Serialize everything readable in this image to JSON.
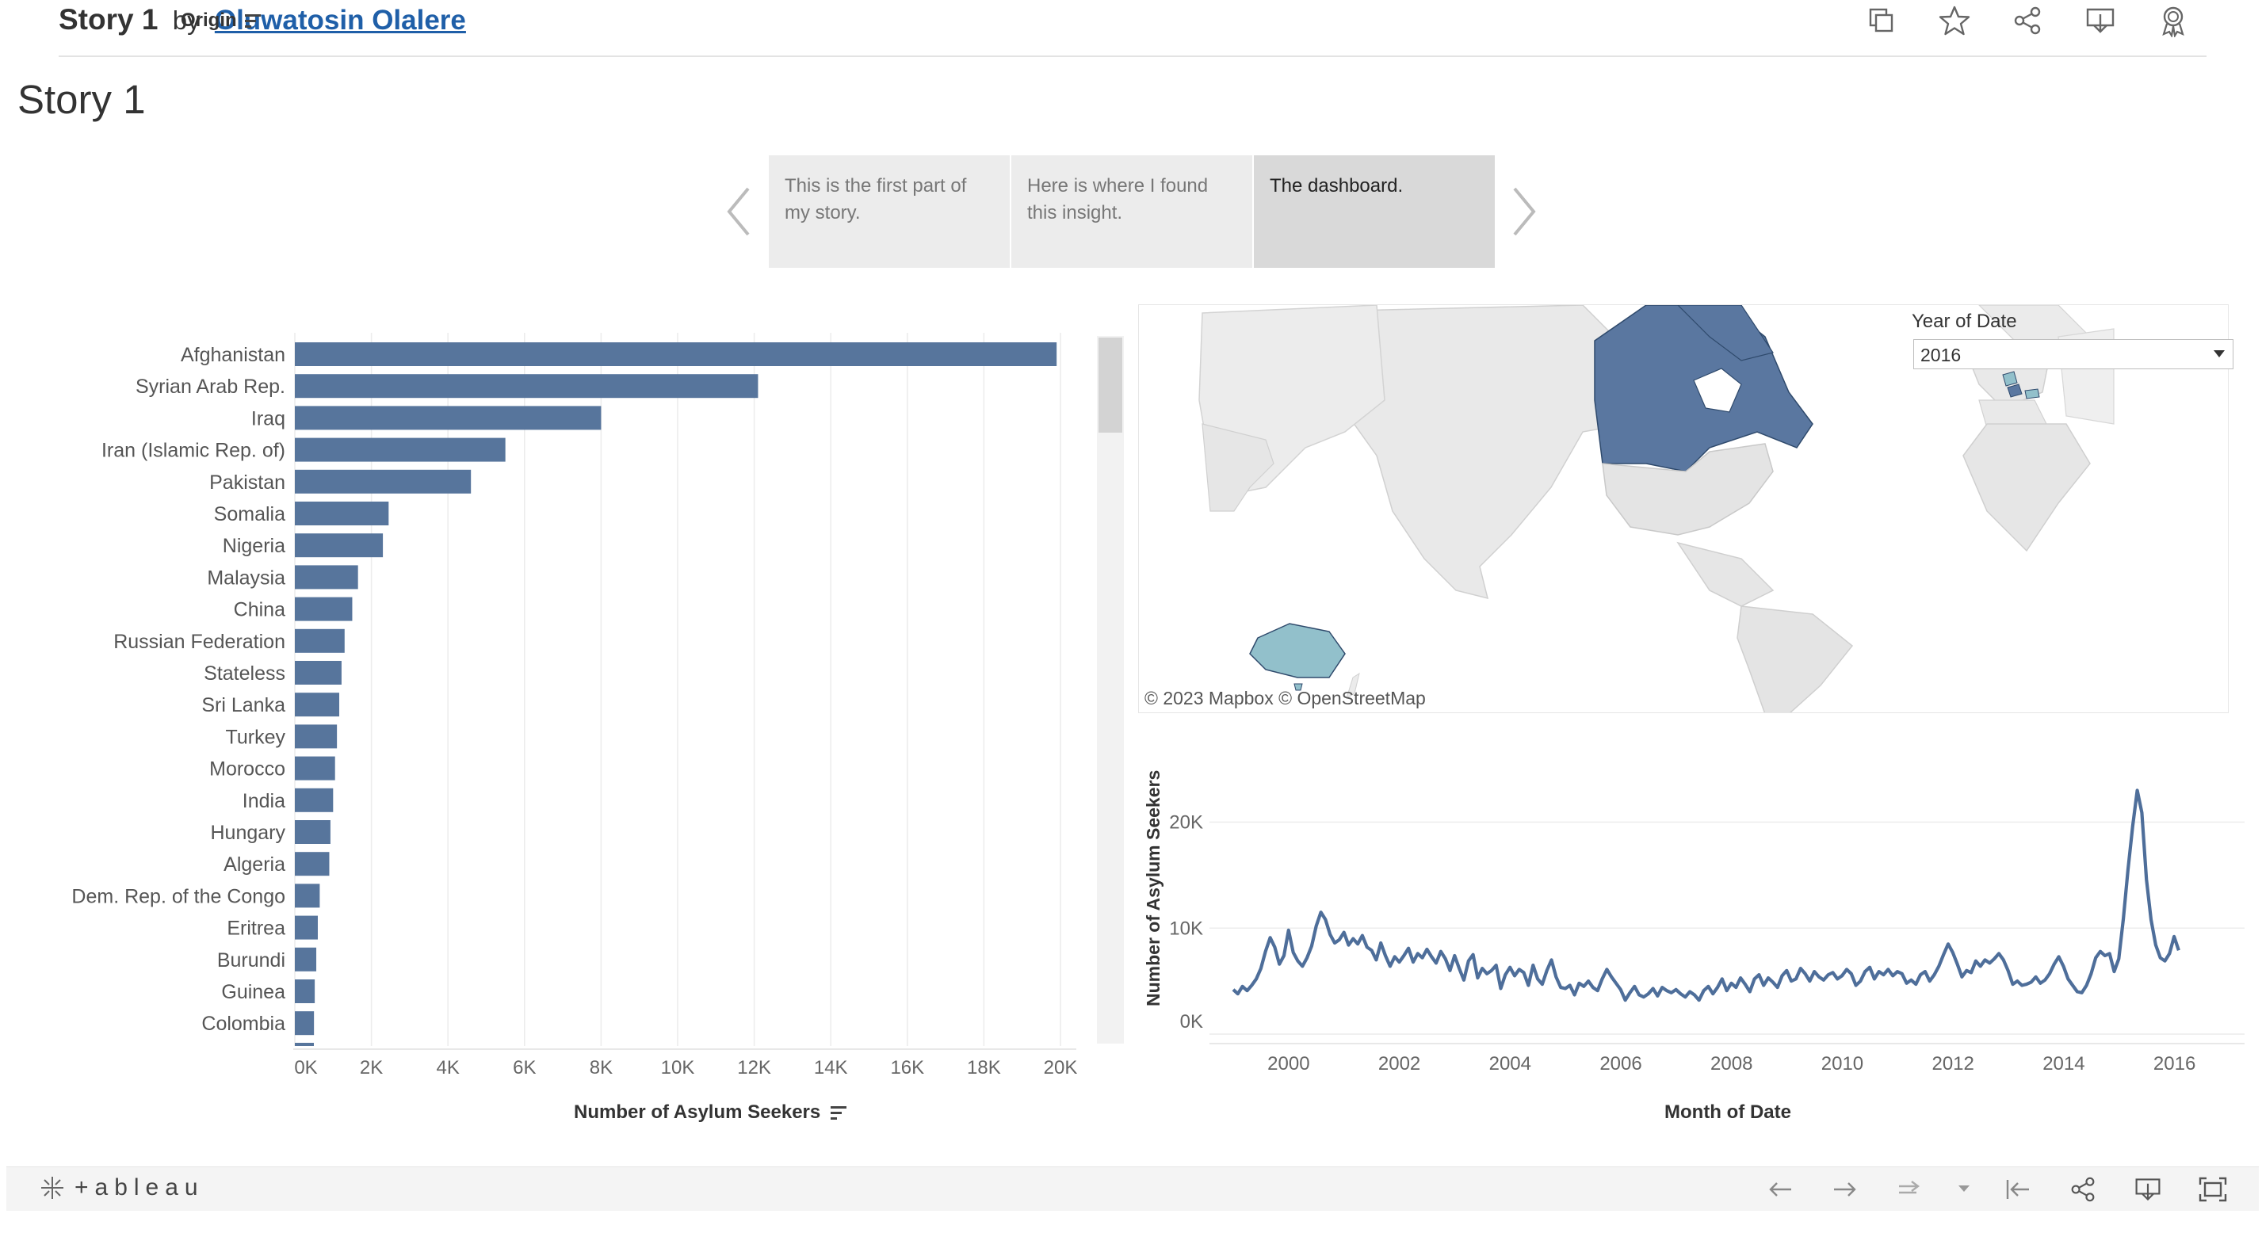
{
  "header": {
    "story_name": "Story 1",
    "by": "by",
    "author": "Oluwatosin Olalere"
  },
  "icons": {
    "top": [
      "copy-icon",
      "favorite-star-icon",
      "share-icon",
      "download-icon",
      "badge-icon"
    ],
    "footer": [
      "undo-icon",
      "redo-icon",
      "revert-icon",
      "revert-menu-icon",
      "reset-icon",
      "share-icon",
      "download-icon",
      "fullscreen-icon"
    ]
  },
  "story": {
    "title": "Story 1",
    "points": [
      {
        "text": "This is the first part of my story."
      },
      {
        "text": "Here is where I found this insight."
      },
      {
        "text": "The dashboard."
      }
    ],
    "active_index": 2
  },
  "filter": {
    "title": "Year of Date",
    "value": "2016"
  },
  "map": {
    "credit": "© 2023 Mapbox  © OpenStreetMap",
    "highlight_colors": {
      "canada": "#57759c",
      "australia": "#92c0cb",
      "europe": "#57759c"
    }
  },
  "footer": {
    "logo_text": "+ableau"
  },
  "colors": {
    "bar": "#57759c",
    "line": "#4e6e9a",
    "accent_link": "#1f5fa8"
  },
  "chart_data": [
    {
      "type": "bar",
      "orientation": "horizontal",
      "header_label": "Origin",
      "xlabel": "Number of Asylum Seekers",
      "xlim": [
        0,
        20000
      ],
      "ticks": [
        "0K",
        "2K",
        "4K",
        "6K",
        "8K",
        "10K",
        "12K",
        "14K",
        "16K",
        "18K",
        "20K"
      ],
      "categories": [
        "Afghanistan",
        "Syrian Arab Rep.",
        "Iraq",
        "Iran (Islamic Rep. of)",
        "Pakistan",
        "Somalia",
        "Nigeria",
        "Malaysia",
        "China",
        "Russian Federation",
        "Stateless",
        "Sri Lanka",
        "Turkey",
        "Morocco",
        "India",
        "Hungary",
        "Algeria",
        "Dem. Rep. of the Congo",
        "Eritrea",
        "Burundi",
        "Guinea",
        "Colombia"
      ],
      "values": [
        19900,
        12100,
        8000,
        5500,
        4600,
        2450,
        2300,
        1650,
        1500,
        1300,
        1220,
        1160,
        1100,
        1050,
        1000,
        930,
        900,
        650,
        600,
        560,
        520,
        500
      ]
    },
    {
      "type": "line",
      "xlabel": "Month of Date",
      "ylabel": "Number of Asylum Seekers",
      "ylim": [
        0,
        24000
      ],
      "yticks": [
        "0K",
        "10K",
        "20K"
      ],
      "xticks": [
        "2000",
        "2002",
        "2004",
        "2006",
        "2008",
        "2010",
        "2012",
        "2014",
        "2016"
      ],
      "x_range": [
        1999.0,
        2016.75
      ],
      "x_start": 1999.0,
      "x_step": 0.0833,
      "values": [
        4200,
        3800,
        4500,
        4100,
        4600,
        5200,
        6200,
        7800,
        9100,
        8200,
        6600,
        7400,
        9800,
        7700,
        6900,
        6400,
        7200,
        8300,
        10200,
        11500,
        10800,
        9400,
        8600,
        8900,
        9600,
        8400,
        9000,
        8500,
        9300,
        8200,
        7900,
        7000,
        8600,
        7400,
        6400,
        7300,
        6800,
        7400,
        8100,
        6800,
        7600,
        7200,
        8000,
        7300,
        6700,
        7800,
        7100,
        6000,
        7400,
        6200,
        5100,
        6900,
        7500,
        5300,
        6200,
        5700,
        6000,
        6500,
        4300,
        5600,
        6300,
        5500,
        6100,
        5800,
        4600,
        6500,
        5200,
        4700,
        6000,
        7000,
        5400,
        4400,
        4300,
        4600,
        3700,
        4800,
        4500,
        5000,
        4400,
        4100,
        5200,
        6100,
        5400,
        4800,
        4200,
        3200,
        3900,
        4500,
        3700,
        3500,
        3800,
        4300,
        3600,
        4400,
        4100,
        3900,
        4200,
        3800,
        3500,
        4000,
        3700,
        3200,
        4100,
        4500,
        3800,
        4400,
        5200,
        4100,
        4800,
        4400,
        5300,
        4700,
        4000,
        5200,
        5600,
        4600,
        5300,
        4900,
        4400,
        5500,
        6000,
        5000,
        5200,
        6200,
        5700,
        5000,
        5900,
        5400,
        5100,
        5600,
        5800,
        5200,
        5500,
        6100,
        5700,
        4600,
        5000,
        5900,
        6300,
        5200,
        5900,
        5600,
        6100,
        5500,
        5900,
        5700,
        4800,
        5100,
        4700,
        5600,
        5900,
        5000,
        5600,
        6400,
        7500,
        8500,
        7700,
        6600,
        5400,
        6000,
        5800,
        6900,
        6400,
        7000,
        6700,
        7100,
        7600,
        7000,
        6000,
        4700,
        5000,
        4600,
        4700,
        4900,
        5400,
        4800,
        5100,
        5700,
        6600,
        7300,
        6400,
        5200,
        4600,
        4000,
        3900,
        4600,
        5700,
        7200,
        7800,
        7400,
        7600,
        5900,
        7100,
        10900,
        15500,
        19600,
        23000,
        20900,
        14600,
        10800,
        8400,
        7200,
        6900,
        7600,
        9200,
        7900
      ]
    }
  ]
}
